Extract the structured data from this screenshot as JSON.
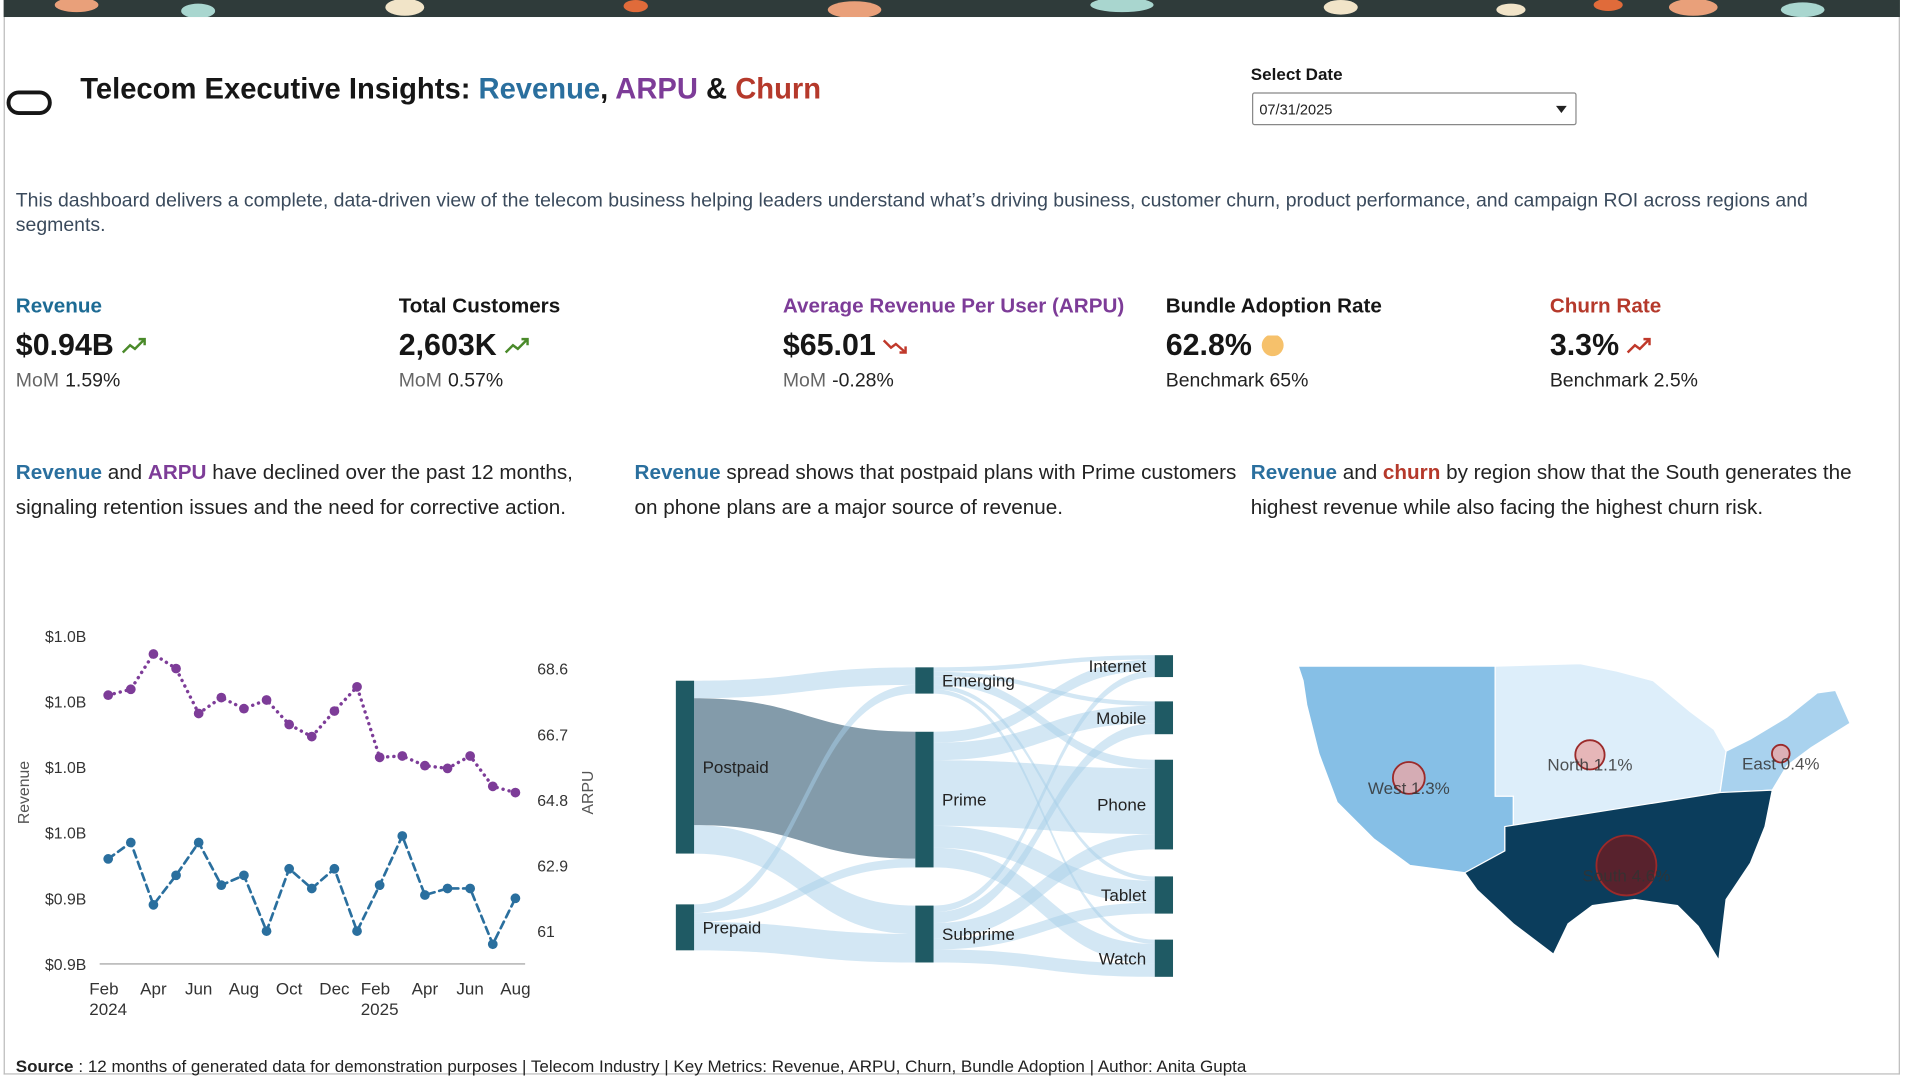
{
  "header": {
    "title_parts": [
      {
        "text": "Telecom Executive Insights: ",
        "color": "#161616"
      },
      {
        "text": "Revenue",
        "color": "#2a6f9e"
      },
      {
        "text": ", ",
        "color": "#161616"
      },
      {
        "text": "ARPU",
        "color": "#7d3c98"
      },
      {
        "text": " & ",
        "color": "#161616"
      },
      {
        "text": "Churn",
        "color": "#b5392b"
      }
    ],
    "date_label": "Select Date",
    "date_value": "07/31/2025"
  },
  "description": "This dashboard delivers a complete, data-driven view of the telecom business helping leaders understand what’s driving business, customer churn, product performance, and campaign ROI across regions and segments.",
  "kpis": [
    {
      "title": "Revenue",
      "title_color": "#1d6b94",
      "value": "$0.94B",
      "trend": "up",
      "change_label": "MoM",
      "change": "1.59%"
    },
    {
      "title": "Total Customers",
      "title_color": "#161616",
      "value": "2,603K",
      "trend": "up",
      "change_label": "MoM",
      "change": "0.57%"
    },
    {
      "title": "Average Revenue Per User (ARPU)",
      "title_color": "#7d3c98",
      "value": "$65.01",
      "trend": "down",
      "change_label": "MoM",
      "change": "-0.28%"
    },
    {
      "title": "Bundle Adoption Rate",
      "title_color": "#161616",
      "value": "62.8%",
      "trend": "dot",
      "note": "Benchmark 65%"
    },
    {
      "title": "Churn Rate",
      "title_color": "#b5392b",
      "value": "3.3%",
      "trend": "up-bad",
      "note": "Benchmark 2.5%"
    }
  ],
  "insights": [
    {
      "parts": [
        {
          "text": "Revenue",
          "color": "#2a6f9e",
          "bold": true
        },
        {
          "text": " and ",
          "color": "#222"
        },
        {
          "text": "ARPU",
          "color": "#7d3c98",
          "bold": true
        },
        {
          "text": " have declined over the past 12 months, signaling retention issues and the need for corrective action.",
          "color": "#222"
        }
      ]
    },
    {
      "parts": [
        {
          "text": "Revenue",
          "color": "#2a6f9e",
          "bold": true
        },
        {
          "text": " spread shows that postpaid plans with Prime customers on phone plans are a major source of revenue.",
          "color": "#222"
        }
      ]
    },
    {
      "parts": [
        {
          "text": "Revenue",
          "color": "#2a6f9e",
          "bold": true
        },
        {
          "text": " and ",
          "color": "#222"
        },
        {
          "text": "churn",
          "color": "#b5392b",
          "bold": true
        },
        {
          "text": " by region show that the South generates the highest revenue while also facing the highest churn risk.",
          "color": "#222"
        }
      ]
    }
  ],
  "chart_data": [
    {
      "type": "line",
      "categories": [
        "Feb\n2024",
        null,
        "Apr",
        null,
        "Jun",
        null,
        "Aug",
        null,
        "Oct",
        null,
        "Dec",
        null,
        "Feb\n2025",
        null,
        "Apr",
        null,
        "Jun",
        null,
        "Aug"
      ],
      "y_label": "Revenue",
      "y2_label": "ARPU",
      "series": [
        {
          "color": "#2a6f9e",
          "dash": "dashed",
          "values": [
            0.952,
            0.957,
            0.938,
            0.947,
            0.957,
            0.944,
            0.947,
            0.93,
            0.949,
            0.943,
            0.949,
            0.93,
            0.944,
            0.959,
            0.941,
            0.943,
            0.943,
            0.926,
            0.94
          ]
        },
        {
          "color": "#7d3c98",
          "dash": "dotted",
          "axis": "y2",
          "values": [
            67.83,
            68.0,
            69.02,
            68.6,
            67.3,
            67.76,
            67.44,
            67.69,
            66.98,
            66.63,
            67.37,
            68.07,
            66.03,
            66.07,
            65.79,
            65.71,
            66.07,
            65.19,
            65.01
          ]
        }
      ],
      "ylim": [
        0.92,
        1.02
      ],
      "yticks": [
        {
          "value": 0.92,
          "label": "$0.9B"
        },
        {
          "value": 0.94,
          "label": "$0.9B"
        },
        {
          "value": 0.96,
          "label": "$1.0B"
        },
        {
          "value": 0.98,
          "label": "$1.0B"
        },
        {
          "value": 1.0,
          "label": "$1.0B"
        },
        {
          "value": 1.02,
          "label": "$1.0B"
        }
      ],
      "y2lim": [
        60.05,
        69.55
      ],
      "y2ticks": [
        61,
        62.9,
        64.8,
        66.7,
        68.6
      ]
    },
    {
      "type": "sankey",
      "nodes": [
        "Postpaid",
        "Prepaid",
        "Emerging",
        "Prime",
        "Subprime",
        "Internet",
        "Mobile",
        "Phone",
        "Tablet",
        "Watch"
      ],
      "node_color": "#1f5a64",
      "link_color": "#a8cfea",
      "links": [
        {
          "source": "Postpaid",
          "target": "Emerging",
          "value": 8
        },
        {
          "source": "Postpaid",
          "target": "Prime",
          "value": 58,
          "color": "#6d8a9b"
        },
        {
          "source": "Postpaid",
          "target": "Subprime",
          "value": 13
        },
        {
          "source": "Prepaid",
          "target": "Emerging",
          "value": 4
        },
        {
          "source": "Prepaid",
          "target": "Prime",
          "value": 4
        },
        {
          "source": "Prepaid",
          "target": "Subprime",
          "value": 13
        },
        {
          "source": "Emerging",
          "target": "Internet",
          "value": 2
        },
        {
          "source": "Emerging",
          "target": "Mobile",
          "value": 2
        },
        {
          "source": "Emerging",
          "target": "Phone",
          "value": 4
        },
        {
          "source": "Emerging",
          "target": "Tablet",
          "value": 2
        },
        {
          "source": "Emerging",
          "target": "Watch",
          "value": 2
        },
        {
          "source": "Prime",
          "target": "Internet",
          "value": 5
        },
        {
          "source": "Prime",
          "target": "Mobile",
          "value": 8
        },
        {
          "source": "Prime",
          "target": "Phone",
          "value": 30
        },
        {
          "source": "Prime",
          "target": "Tablet",
          "value": 10
        },
        {
          "source": "Prime",
          "target": "Watch",
          "value": 9
        },
        {
          "source": "Subprime",
          "target": "Internet",
          "value": 3
        },
        {
          "source": "Subprime",
          "target": "Mobile",
          "value": 5
        },
        {
          "source": "Subprime",
          "target": "Phone",
          "value": 7
        },
        {
          "source": "Subprime",
          "target": "Tablet",
          "value": 5
        },
        {
          "source": "Subprime",
          "target": "Watch",
          "value": 6
        }
      ]
    },
    {
      "type": "map",
      "values": [
        1.3,
        1.1,
        0.4,
        4.6
      ],
      "value_labels": [
        "West 1.3%",
        "North 1.1%",
        "East 0.4%",
        "South 4.6%"
      ],
      "region_colors": [
        "#86bfe6",
        "#ddeefa",
        "#a9d2ee",
        "#0b3d5c"
      ],
      "bubble_colors": [
        "#e8a7a7",
        "#e8a7a7",
        "#e8a7a7",
        "#6b1c22"
      ]
    }
  ],
  "footer": {
    "label": "Source",
    "text": ": 12 months of generated data for demonstration purposes | Telecom Industry | Key Metrics: Revenue, ARPU, Churn, Bundle Adoption | Author: Anita Gupta"
  }
}
